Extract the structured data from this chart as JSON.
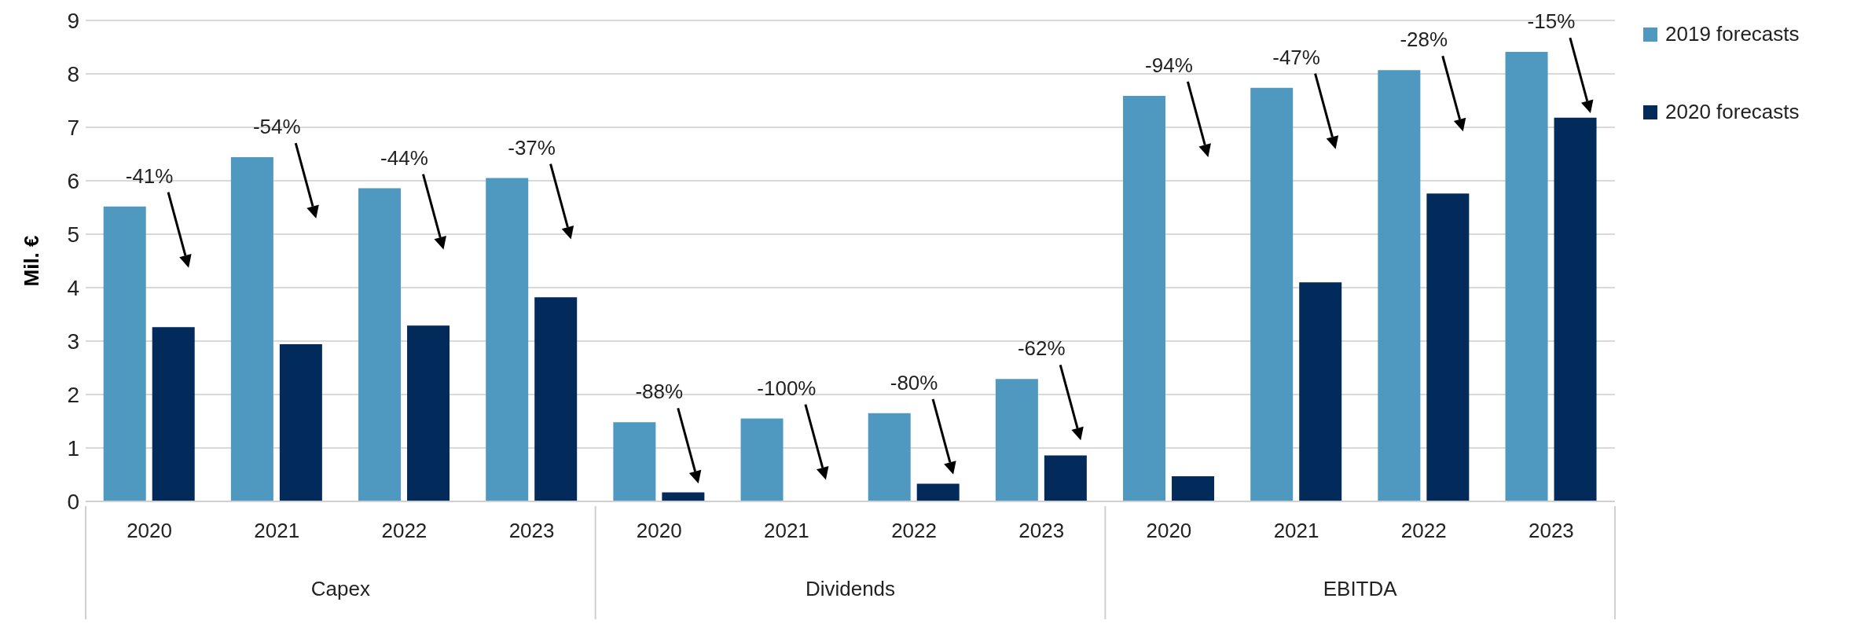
{
  "chart_data": {
    "type": "bar",
    "ylabel": "Mil. €",
    "categories": [
      "2020",
      "2021",
      "2022",
      "2023",
      "2020",
      "2021",
      "2022",
      "2023",
      "2020",
      "2021",
      "2022",
      "2023"
    ],
    "annotations": [
      "Capex",
      "Dividends",
      "EBITDA",
      "-41%",
      "-54%",
      "-44%",
      "-37%",
      "-88%",
      "-100%",
      "-80%",
      "-62%",
      "-94%",
      "-47%",
      "-28%",
      "-15%"
    ],
    "series": [
      {
        "name": "2019 forecasts",
        "color": "#4f99c1",
        "values": [
          5.52,
          6.44,
          5.86,
          6.05,
          1.48,
          1.55,
          1.65,
          2.29,
          7.59,
          7.74,
          8.07,
          8.41
        ]
      },
      {
        "name": "2020 forecasts",
        "color": "#022b5b",
        "values": [
          3.26,
          2.94,
          3.29,
          3.82,
          0.17,
          0,
          0.33,
          0.86,
          0.47,
          4.1,
          5.76,
          7.18
        ]
      }
    ],
    "ylim": [
      0,
      9
    ],
    "yticks": [
      0,
      1,
      2,
      3,
      4,
      5,
      6,
      7,
      8,
      9
    ],
    "grid": "y",
    "legend": "top right"
  }
}
